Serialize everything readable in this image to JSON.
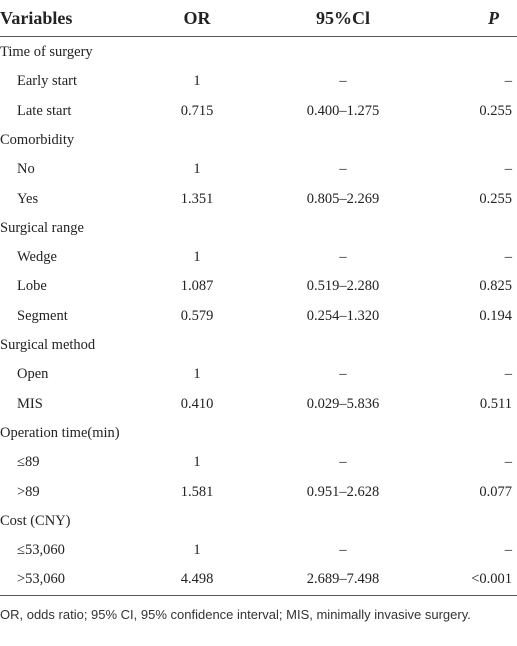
{
  "table": {
    "header": [
      "Variables",
      "OR",
      "95%Cl",
      "P"
    ],
    "rows": [
      [
        "Time of surgery"
      ],
      [
        "Early start",
        "1",
        "–",
        "–"
      ],
      [
        "Late start",
        "0.715",
        "0.400–1.275",
        "0.255"
      ],
      [
        "Comorbidity"
      ],
      [
        "No",
        "1",
        "–",
        "–"
      ],
      [
        "Yes",
        "1.351",
        "0.805–2.269",
        "0.255"
      ],
      [
        "Surgical range"
      ],
      [
        "Wedge",
        "1",
        "–",
        "–"
      ],
      [
        "Lobe",
        "1.087",
        "0.519–2.280",
        "0.825"
      ],
      [
        "Segment",
        "0.579",
        "0.254–1.320",
        "0.194"
      ],
      [
        "Surgical method"
      ],
      [
        "Open",
        "1",
        "–",
        "–"
      ],
      [
        "MIS",
        "0.410",
        "0.029–5.836",
        "0.511"
      ],
      [
        "Operation time(min)"
      ],
      [
        "≤89",
        "1",
        "–",
        "–"
      ],
      [
        ">89",
        "1.581",
        "0.951–2.628",
        "0.077"
      ],
      [
        "Cost (CNY)"
      ],
      [
        "≤53,060",
        "1",
        "–",
        "–"
      ],
      [
        ">53,060",
        "4.498",
        "2.689–7.498",
        "<0.001"
      ]
    ]
  },
  "footnote": "OR, odds ratio; 95% CI, 95% confidence interval; MIS, minimally invasive surgery."
}
